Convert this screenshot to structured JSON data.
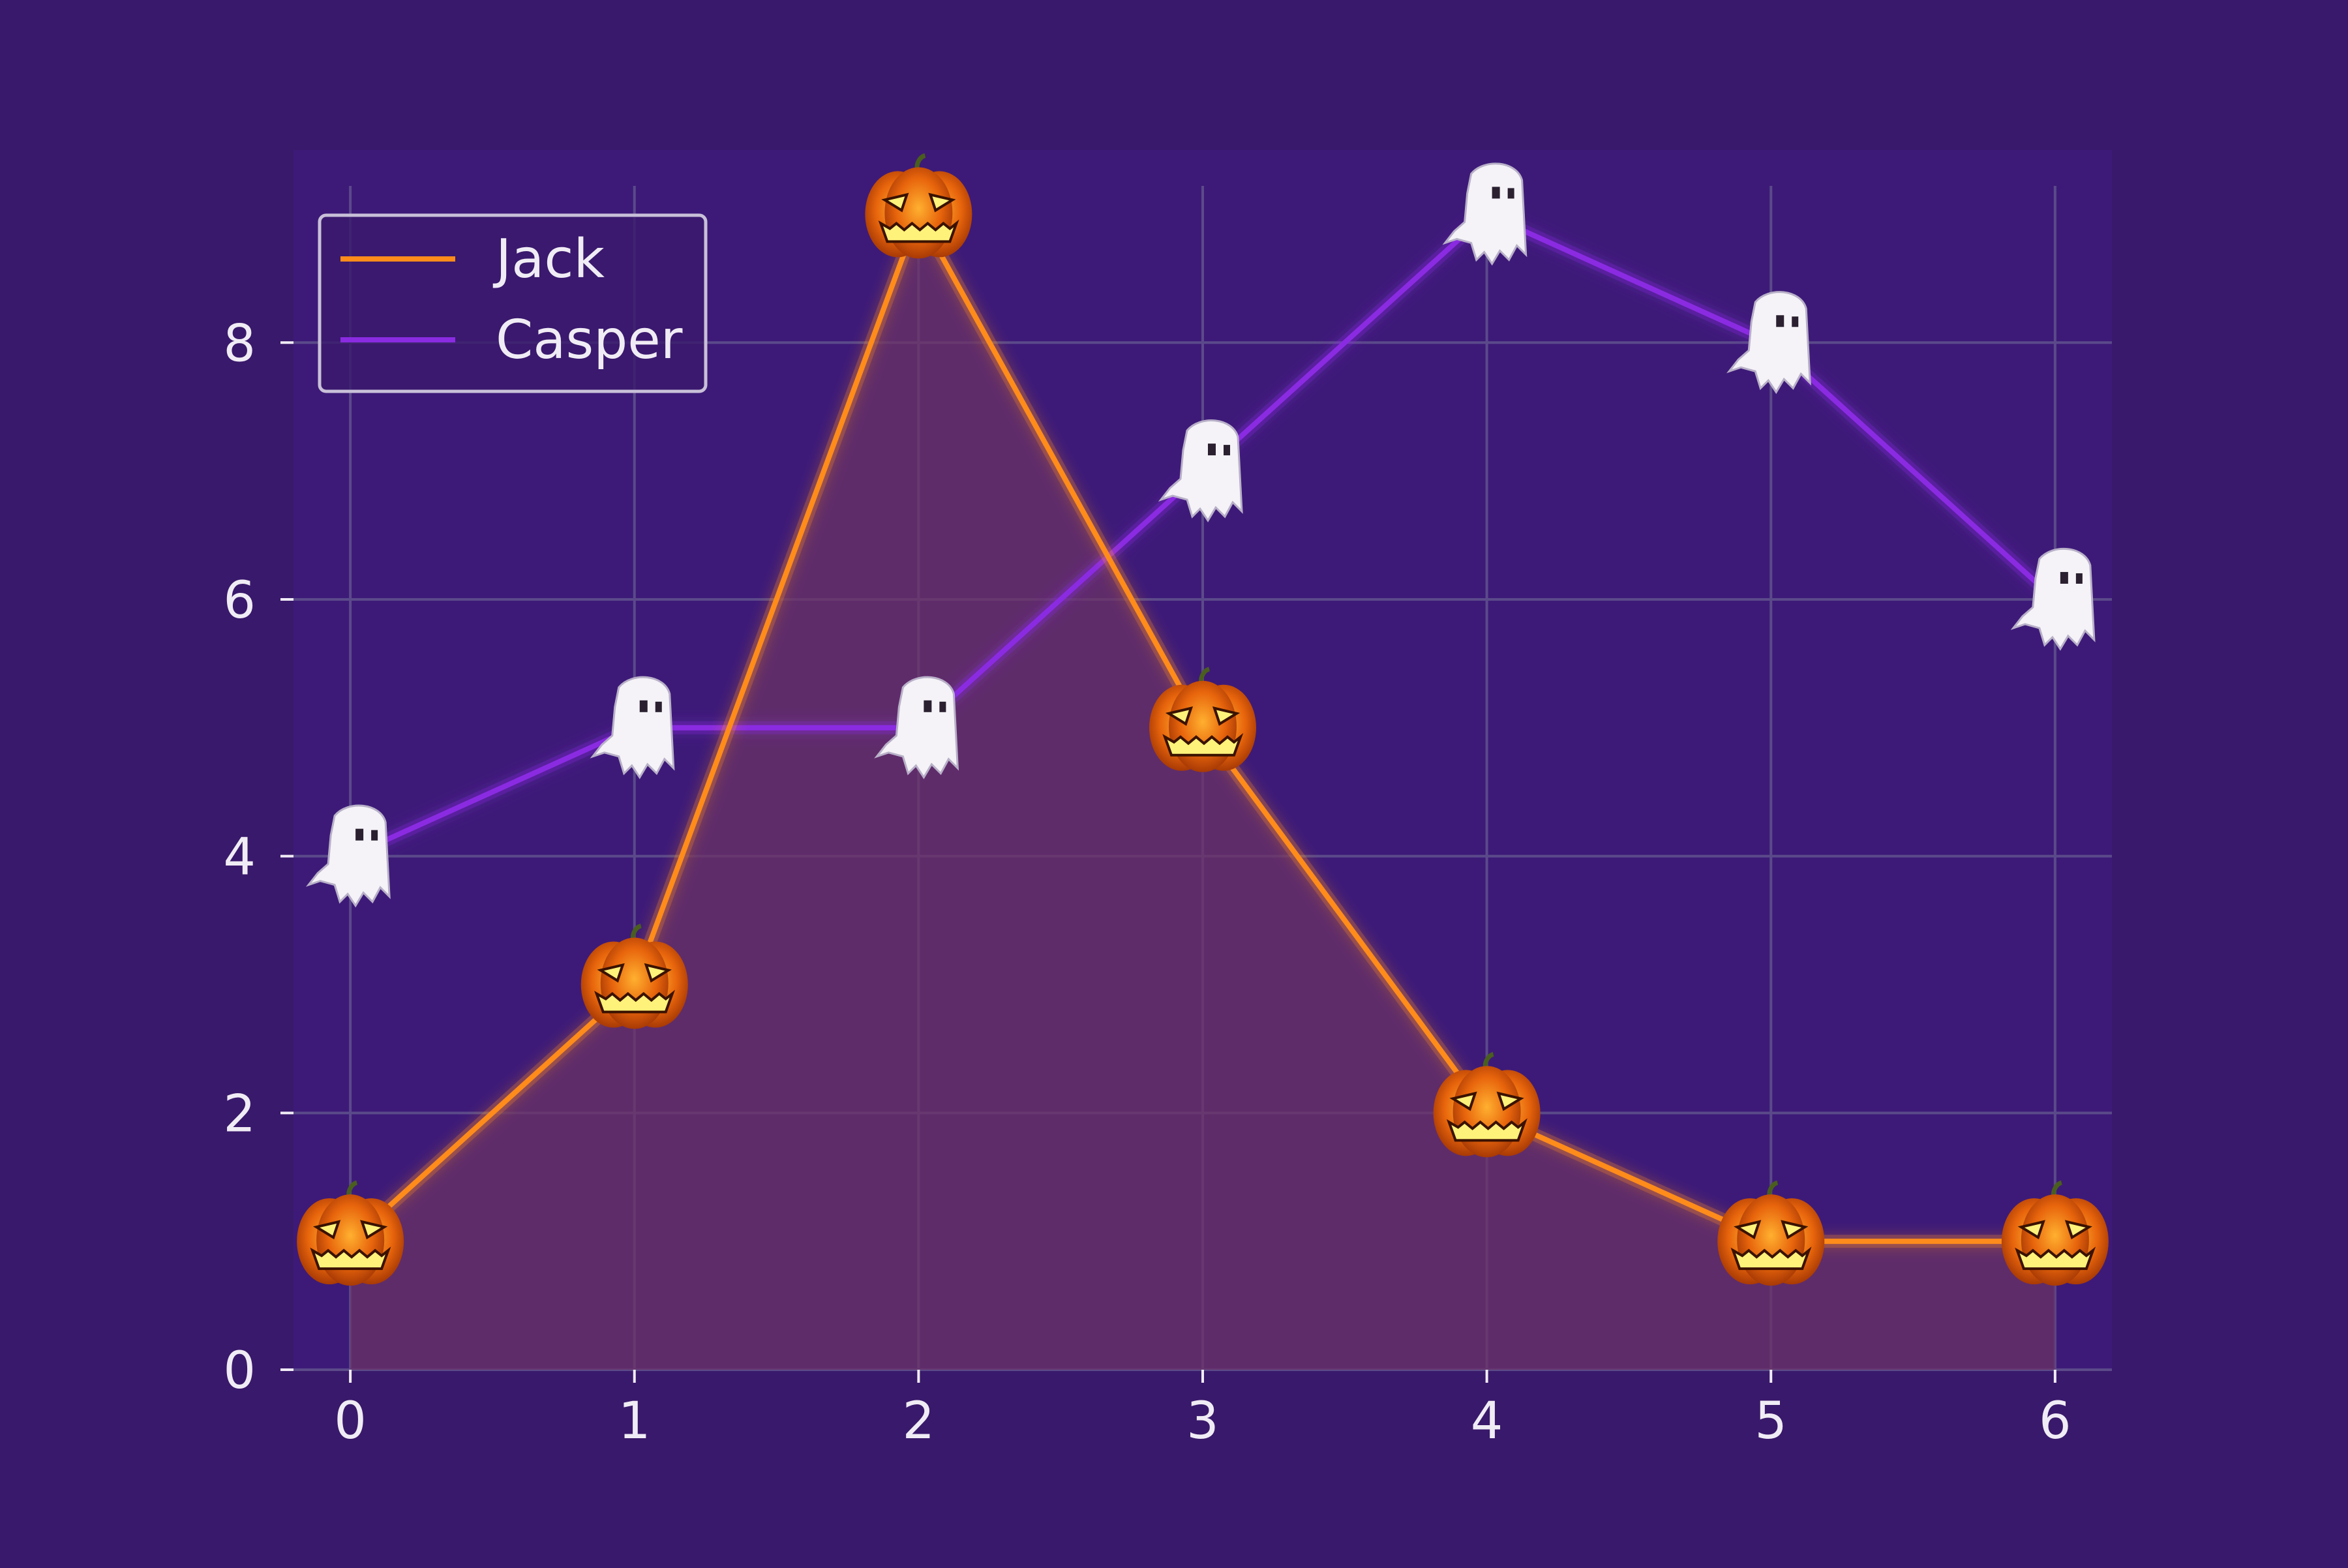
{
  "colors": {
    "background": "#39196b",
    "plot_background": "#3d1a78",
    "grid": "#5b4a8a",
    "text": "#f0ecf5",
    "legend_border": "#c8c0d8",
    "legend_fill": "#39196b",
    "jack": "#ff8c1a",
    "casper": "#8a2be2",
    "area_fill": "#6b3366"
  },
  "chart_data": {
    "type": "line",
    "x": [
      0,
      1,
      2,
      3,
      4,
      5,
      6
    ],
    "xlim": [
      -0.2,
      6.2
    ],
    "ylim": [
      0,
      9.5
    ],
    "xticks": [
      0,
      1,
      2,
      3,
      4,
      5,
      6
    ],
    "yticks": [
      0,
      2,
      4,
      6,
      8
    ],
    "grid": true,
    "legend_position": "top-left",
    "title": "",
    "xlabel": "",
    "ylabel": "",
    "series": [
      {
        "name": "Jack",
        "values": [
          1,
          3,
          9,
          5,
          2,
          1,
          1
        ],
        "marker": "jack-o-lantern",
        "filled": true
      },
      {
        "name": "Casper",
        "values": [
          4,
          5,
          5,
          7,
          9,
          8,
          6
        ],
        "marker": "ghost",
        "filled": false
      }
    ]
  }
}
